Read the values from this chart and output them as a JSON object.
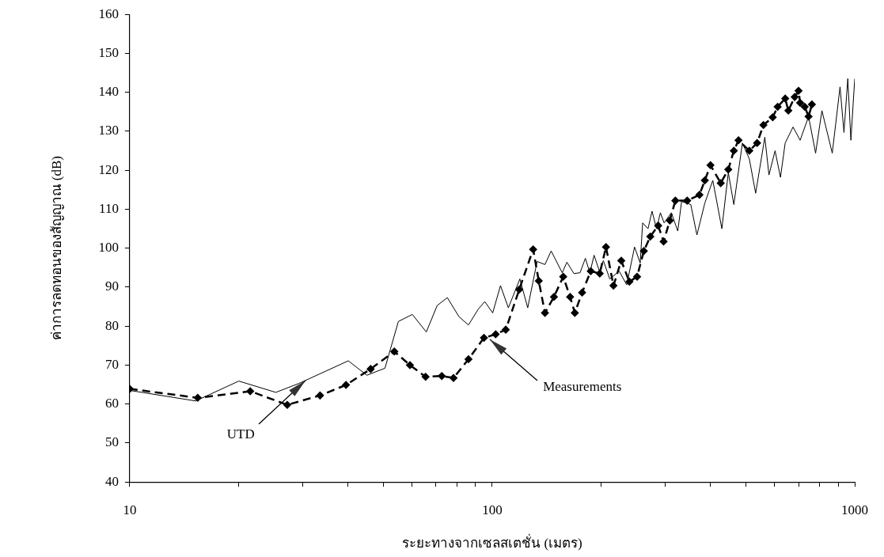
{
  "chart_data": {
    "type": "line",
    "xlabel": "ระยะทางจากเซลสเตชั่น (เมตร)",
    "ylabel": "ค่าการลดทอนของสัญญาณ (dB)",
    "log": "x",
    "xlim": [
      10,
      1000
    ],
    "xticks": [
      10,
      {
        "value": 20,
        "label": null
      },
      {
        "value": 30,
        "label": null
      },
      {
        "value": 40,
        "label": null
      },
      {
        "value": 50,
        "label": null
      },
      {
        "value": 60,
        "label": null
      },
      {
        "value": 70,
        "label": null
      },
      {
        "value": 80,
        "label": null
      },
      {
        "value": 90,
        "label": null
      },
      100,
      {
        "value": 200,
        "label": null
      },
      {
        "value": 300,
        "label": null
      },
      {
        "value": 400,
        "label": null
      },
      {
        "value": 500,
        "label": null
      },
      {
        "value": 600,
        "label": null
      },
      {
        "value": 700,
        "label": null
      },
      {
        "value": 800,
        "label": null
      },
      {
        "value": 900,
        "label": null
      },
      1000
    ],
    "ylim": [
      40,
      160
    ],
    "yticks": [
      40,
      50,
      60,
      70,
      80,
      90,
      100,
      110,
      120,
      130,
      140,
      150,
      160
    ],
    "grid": false,
    "legend": false,
    "series": [
      {
        "color": "#000000",
        "marker": "none",
        "line_style": "solid",
        "x": [
          10,
          15.2,
          20,
          25.3,
          29.3,
          40.1,
          45.1,
          50.6,
          55.1,
          60.2,
          65.8,
          70.5,
          75.2,
          81,
          86,
          91.6,
          95.4,
          100.3,
          105.4,
          110.8,
          119.2,
          125.3,
          133,
          139.8,
          145.4,
          156,
          160.7,
          168,
          174.7,
          180.7,
          186,
          191,
          197.6,
          202.6,
          211,
          224,
          235,
          247,
          256,
          260,
          269,
          276,
          284,
          291,
          298,
          312,
          325,
          333,
          353,
          367,
          386,
          406,
          430,
          448,
          464,
          490,
          512,
          533,
          565,
          580,
          603,
          624,
          643,
          676,
          707,
          746,
          780,
          812,
          867,
          911,
          934,
          957,
          976,
          1000
        ],
        "values": [
          63.5,
          60.8,
          65.9,
          63,
          65.3,
          71.1,
          67.4,
          69.2,
          81.2,
          83,
          78.5,
          85.3,
          87.3,
          82.4,
          80.3,
          84.4,
          86.3,
          83.4,
          90.4,
          84.7,
          92.1,
          84.7,
          96.6,
          95.8,
          99.3,
          93.7,
          96.4,
          93.5,
          93.7,
          97.4,
          93.7,
          98.2,
          94.1,
          96.8,
          92.1,
          94.1,
          90.6,
          100.3,
          96.2,
          106.5,
          105,
          109.5,
          105,
          109.1,
          106.5,
          109.1,
          104.4,
          112,
          111.2,
          103.4,
          111.6,
          117.4,
          105,
          119.4,
          111.2,
          127,
          122.9,
          114.1,
          128.5,
          118.8,
          125,
          118.2,
          127,
          131.1,
          127.7,
          133.8,
          124.4,
          135.3,
          124.4,
          141.4,
          129.7,
          143.5,
          127.7,
          143.5
        ]
      },
      {
        "color": "#000000",
        "marker": "diamond",
        "line_style": "dashed",
        "x": [
          10,
          15.4,
          21.5,
          27.2,
          33.5,
          39.5,
          46.2,
          53.7,
          59.3,
          65.5,
          72.6,
          78.2,
          86,
          94.9,
          102.2,
          109,
          118.7,
          129.7,
          134.4,
          139.8,
          148,
          157,
          164,
          169,
          177,
          187,
          198,
          206,
          216,
          227,
          239,
          251,
          262,
          273,
          287,
          297,
          309,
          320,
          345,
          373,
          386,
          400,
          427,
          448,
          464,
          478,
          512,
          538,
          560,
          594,
          613,
          643,
          656,
          683,
          700,
          707,
          728,
          746,
          762
        ],
        "values": [
          63.9,
          61.6,
          63.3,
          59.8,
          62.2,
          64.9,
          69,
          73.5,
          70,
          67,
          67.2,
          66.7,
          71.5,
          77,
          77.9,
          79.1,
          89.4,
          99.7,
          91.6,
          83.4,
          87.5,
          92.7,
          87.5,
          83.4,
          88.6,
          94.1,
          93.5,
          100.3,
          90.4,
          96.8,
          91.4,
          92.7,
          99.3,
          103,
          105.8,
          101.7,
          107.1,
          112.2,
          112.2,
          113.7,
          117.4,
          121.3,
          116.7,
          120.2,
          125,
          127.7,
          125,
          127,
          131.6,
          133.6,
          136.3,
          138.4,
          135.3,
          138.8,
          140.4,
          137.3,
          136.3,
          133.8,
          136.9
        ]
      }
    ],
    "annotations": [
      {
        "text": "UTD",
        "x": 30.5,
        "y": 66
      },
      {
        "text": "Measurements",
        "x": 98.6,
        "y": 76.6
      }
    ]
  }
}
